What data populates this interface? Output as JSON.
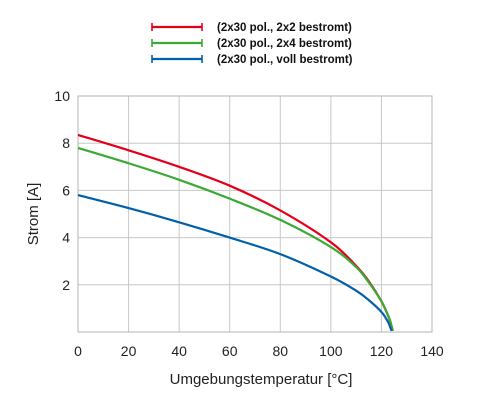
{
  "chart_data": {
    "type": "line",
    "title": "",
    "xlabel": "Umgebungstemperatur [°C]",
    "ylabel": "Strom [A]",
    "xlim": [
      0,
      140
    ],
    "ylim": [
      0,
      10
    ],
    "xticks": [
      0,
      20,
      40,
      60,
      80,
      100,
      120,
      140
    ],
    "yticks": [
      2,
      4,
      6,
      8,
      10
    ],
    "xtick_labels": [
      "0",
      "20",
      "40",
      "60",
      "80",
      "100",
      "120",
      "140"
    ],
    "ytick_labels": [
      "2",
      "4",
      "6",
      "8",
      "10"
    ],
    "grid": true,
    "legend_position": "top-center",
    "series": [
      {
        "name": "(2x30 pol., 2x2 bestromt)",
        "color": "#e3001b",
        "x": [
          0,
          20,
          40,
          60,
          80,
          100,
          110,
          115,
          120,
          123,
          124,
          124.5
        ],
        "y": [
          8.35,
          7.7,
          7.0,
          6.2,
          5.15,
          3.8,
          2.8,
          2.15,
          1.3,
          0.6,
          0.25,
          0.05
        ]
      },
      {
        "name": "(2x30 pol., 2x4 bestromt)",
        "color": "#3aa935",
        "x": [
          0,
          20,
          40,
          60,
          80,
          100,
          110,
          115,
          120,
          123,
          124,
          124.5
        ],
        "y": [
          7.8,
          7.15,
          6.45,
          5.65,
          4.75,
          3.6,
          2.75,
          2.1,
          1.3,
          0.6,
          0.25,
          0.05
        ]
      },
      {
        "name": "(2x30 pol., voll bestromt)",
        "color": "#0060aa",
        "x": [
          0,
          20,
          40,
          60,
          80,
          100,
          110,
          115,
          120,
          122.5,
          123.5,
          124
        ],
        "y": [
          5.8,
          5.25,
          4.65,
          4.0,
          3.3,
          2.35,
          1.75,
          1.35,
          0.85,
          0.45,
          0.2,
          0.05
        ]
      }
    ]
  }
}
